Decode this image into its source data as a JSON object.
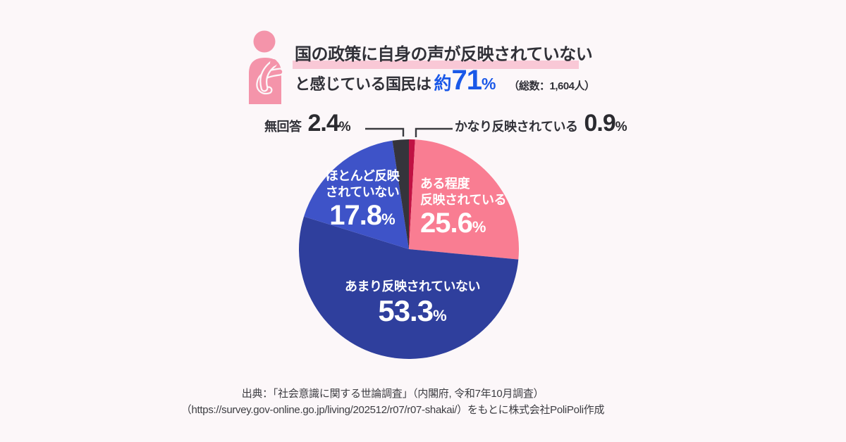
{
  "page": {
    "background": "#FCF7F9"
  },
  "header": {
    "person_icon_color": "#F494AA",
    "title_line1": "国の政策に自身の声が反映されていない",
    "highlight_color": "#F9C8D6",
    "title_line2_pre": "と感じている国民は",
    "headline_approx": "約",
    "headline_number": "71",
    "headline_percent": "%",
    "accent_color": "#1A58E8",
    "total_note": "（総数：1,604人）"
  },
  "chart_data": {
    "type": "pie",
    "title": "国の政策に自身の声が反映されていないと感じている国民は約71%",
    "total_label": "総数：1,604人",
    "start_angle_deg": -90,
    "direction": "clockwise",
    "slices": [
      {
        "label": "かなり反映されている",
        "value": 0.9,
        "color": "#C01243"
      },
      {
        "label": "ある程度反映されている",
        "value": 25.6,
        "color": "#F97D92"
      },
      {
        "label": "あまり反映されていない",
        "value": 53.3,
        "color": "#2F3F9D"
      },
      {
        "label": "ほとんど反映されていない",
        "value": 17.8,
        "color": "#3E53C8"
      },
      {
        "label": "無回答",
        "value": 2.4,
        "color": "#35343B"
      }
    ]
  },
  "pie_labels": {
    "percent_sign": "%",
    "aruteido_line1": "ある程度",
    "aruteido_line2": "反映されている",
    "hotondo_line1": "ほとんど反映",
    "hotondo_line2": "されていない"
  },
  "source": {
    "line1": "出典：「社会意識に関する世論調査」（内閣府, 令和7年10月調査）",
    "line2": "（https://survey.gov-online.go.jp/living/202512/r07/r07-shakai/）をもとに株式会社PoliPoli作成"
  }
}
